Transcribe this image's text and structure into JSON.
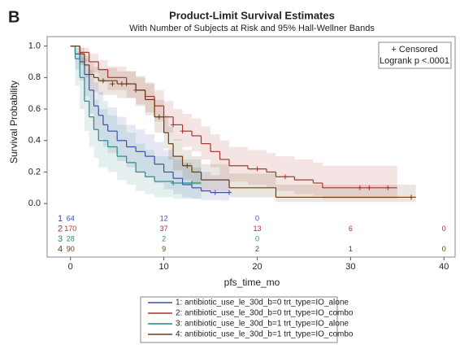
{
  "panel_label": "B",
  "chart_data": {
    "type": "survival",
    "title": "Product-Limit Survival Estimates",
    "subtitle": "With Number of Subjects at Risk and 95% Hall-Wellner Bands",
    "xlabel": "pfs_time_mo",
    "ylabel": "Survival Probability",
    "xlim": [
      -2.5,
      41.2
    ],
    "ylim": [
      -0.34,
      1.06
    ],
    "xticks": [
      0,
      10,
      20,
      30,
      40
    ],
    "yticks": [
      {
        "value": 0,
        "label": "0.0"
      },
      0.2,
      0.4,
      0.6,
      0.8,
      {
        "value": 1,
        "label": "1.0"
      }
    ],
    "inset_lines": [
      "+ Censored",
      "Logrank p <.0001"
    ],
    "series": [
      {
        "name": "1: antibiotic_use_le_30d_b=0 trt_type=IO_alone",
        "color": "#3b4fa8",
        "x": [
          0,
          0.5,
          1,
          1.5,
          2,
          2.5,
          3,
          3.5,
          4,
          5,
          6,
          7,
          8,
          9,
          10,
          11,
          12,
          13,
          14,
          15,
          17
        ],
        "values": [
          1,
          0.95,
          0.9,
          0.82,
          0.72,
          0.62,
          0.56,
          0.5,
          0.46,
          0.4,
          0.36,
          0.33,
          0.3,
          0.25,
          0.2,
          0.16,
          0.12,
          0.1,
          0.08,
          0.07,
          0.07
        ],
        "lower": [
          1,
          0.85,
          0.78,
          0.68,
          0.57,
          0.47,
          0.41,
          0.36,
          0.32,
          0.27,
          0.23,
          0.2,
          0.17,
          0.13,
          0.09,
          0.06,
          0.04,
          0.03,
          0.02,
          0.02,
          0.02
        ],
        "upper": [
          1,
          0.99,
          0.96,
          0.92,
          0.85,
          0.77,
          0.71,
          0.65,
          0.61,
          0.55,
          0.5,
          0.47,
          0.44,
          0.39,
          0.34,
          0.3,
          0.26,
          0.23,
          0.2,
          0.18,
          0.18
        ],
        "censored_x": [
          15.5,
          17
        ],
        "censored_y": [
          0.07,
          0.07
        ]
      },
      {
        "name": "2: antibiotic_use_le_30d_b=0 trt_type=IO_combo",
        "color": "#a8342f",
        "x": [
          0,
          1,
          2,
          3,
          4,
          6,
          7,
          8,
          9,
          10,
          11,
          12,
          13,
          14,
          15,
          16,
          17,
          19,
          21,
          22,
          24,
          26,
          27,
          35
        ],
        "values": [
          1,
          0.96,
          0.9,
          0.85,
          0.8,
          0.76,
          0.72,
          0.68,
          0.62,
          0.55,
          0.5,
          0.46,
          0.43,
          0.38,
          0.33,
          0.28,
          0.24,
          0.22,
          0.2,
          0.17,
          0.15,
          0.13,
          0.1,
          0.1
        ],
        "lower": [
          1,
          0.9,
          0.83,
          0.77,
          0.72,
          0.67,
          0.63,
          0.58,
          0.52,
          0.45,
          0.4,
          0.36,
          0.33,
          0.28,
          0.23,
          0.18,
          0.14,
          0.12,
          0.1,
          0.08,
          0.06,
          0.05,
          0.03,
          0.03
        ],
        "upper": [
          1,
          0.99,
          0.95,
          0.91,
          0.87,
          0.84,
          0.8,
          0.77,
          0.72,
          0.65,
          0.6,
          0.57,
          0.54,
          0.49,
          0.44,
          0.4,
          0.36,
          0.34,
          0.32,
          0.3,
          0.28,
          0.26,
          0.24,
          0.24
        ],
        "censored_x": [
          6,
          7,
          11,
          12,
          20,
          23,
          31,
          32,
          34
        ],
        "censored_y": [
          0.76,
          0.72,
          0.5,
          0.46,
          0.22,
          0.17,
          0.1,
          0.1,
          0.1
        ]
      },
      {
        "name": "3: antibiotic_use_le_30d_b=1 trt_type=IO_alone",
        "color": "#2a8a80",
        "x": [
          0,
          0.5,
          1,
          1.5,
          2,
          2.5,
          3,
          4,
          5,
          6,
          7,
          8,
          9,
          11,
          12,
          13.5,
          14
        ],
        "values": [
          1,
          0.92,
          0.8,
          0.65,
          0.55,
          0.47,
          0.4,
          0.36,
          0.3,
          0.26,
          0.2,
          0.17,
          0.14,
          0.13,
          0.13,
          0.13,
          0.13
        ],
        "lower": [
          1,
          0.75,
          0.6,
          0.46,
          0.36,
          0.29,
          0.23,
          0.2,
          0.15,
          0.12,
          0.08,
          0.06,
          0.04,
          0.03,
          0.03,
          0.03,
          0.03
        ],
        "upper": [
          1,
          0.99,
          0.93,
          0.82,
          0.73,
          0.66,
          0.6,
          0.56,
          0.5,
          0.45,
          0.38,
          0.34,
          0.3,
          0.28,
          0.28,
          0.28,
          0.28
        ],
        "censored_x": [
          11,
          13
        ],
        "censored_y": [
          0.13,
          0.13
        ]
      },
      {
        "name": "4: antibiotic_use_le_30d_b=1 trt_type=IO_combo",
        "color": "#6b3a10",
        "x": [
          0,
          1,
          1.5,
          2,
          2.5,
          3,
          5,
          7,
          8,
          9,
          10,
          10.5,
          11,
          12,
          13,
          14,
          17,
          22,
          37
        ],
        "values": [
          1,
          0.95,
          0.88,
          0.82,
          0.8,
          0.78,
          0.76,
          0.72,
          0.66,
          0.55,
          0.45,
          0.38,
          0.3,
          0.24,
          0.2,
          0.15,
          0.1,
          0.04,
          0.04
        ],
        "lower": [
          1,
          0.88,
          0.8,
          0.73,
          0.71,
          0.69,
          0.67,
          0.62,
          0.56,
          0.45,
          0.35,
          0.28,
          0.21,
          0.15,
          0.12,
          0.08,
          0.04,
          0.01,
          0.01
        ],
        "upper": [
          1,
          0.99,
          0.94,
          0.89,
          0.87,
          0.86,
          0.84,
          0.81,
          0.76,
          0.66,
          0.56,
          0.49,
          0.41,
          0.34,
          0.3,
          0.25,
          0.19,
          0.12,
          0.12
        ],
        "censored_x": [
          3.5,
          4.5,
          5.5,
          9.5,
          12.5,
          36.5
        ],
        "censored_y": [
          0.78,
          0.76,
          0.76,
          0.55,
          0.24,
          0.04
        ]
      }
    ],
    "at_risk": {
      "times": [
        0,
        10,
        20,
        30,
        40
      ],
      "rows": [
        {
          "label": "1",
          "counts": [
            64,
            12,
            0,
            null,
            null
          ]
        },
        {
          "label": "2",
          "counts": [
            170,
            37,
            13,
            6,
            0
          ]
        },
        {
          "label": "3",
          "counts": [
            28,
            2,
            0,
            null,
            null
          ]
        },
        {
          "label": "4",
          "counts": [
            90,
            9,
            2,
            1,
            0
          ]
        }
      ]
    }
  }
}
